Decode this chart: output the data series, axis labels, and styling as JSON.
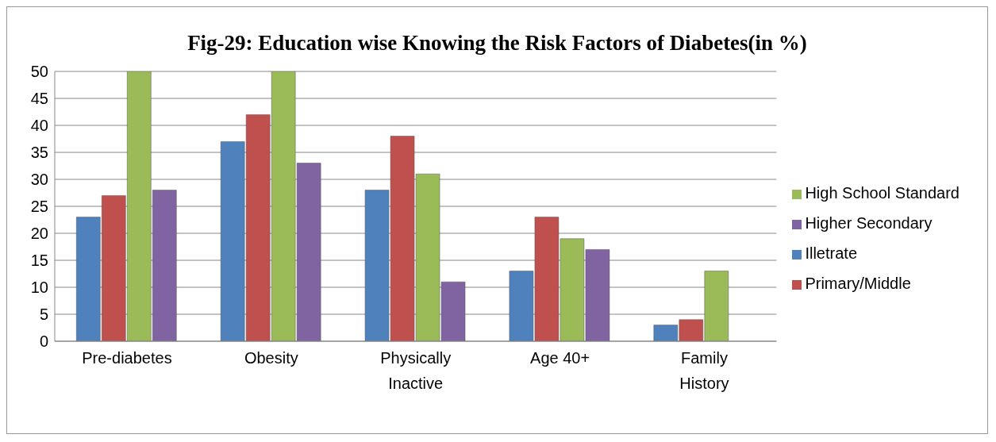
{
  "chart_data": {
    "type": "bar",
    "title": "Fig-29: Education wise Knowing the Risk Factors of Diabetes(in %)",
    "categories": [
      "Pre-diabetes",
      "Obesity",
      "Physically Inactive",
      "Age 40+",
      "Family History"
    ],
    "series": [
      {
        "name": "Illetrate",
        "color": "#4f81bd",
        "values": [
          23,
          37,
          28,
          13,
          3
        ]
      },
      {
        "name": "Primary/Middle",
        "color": "#c0504d",
        "values": [
          27,
          42,
          38,
          23,
          4
        ]
      },
      {
        "name": "High School Standard",
        "color": "#9bbb59",
        "values": [
          50,
          50,
          31,
          19,
          13
        ]
      },
      {
        "name": "Higher Secondary",
        "color": "#8064a2",
        "values": [
          28,
          33,
          11,
          17,
          0
        ]
      }
    ],
    "ylim": [
      0,
      50
    ],
    "yticks": [
      0,
      5,
      10,
      15,
      20,
      25,
      30,
      35,
      40,
      45,
      50
    ],
    "grid": "y",
    "legend": "right"
  }
}
